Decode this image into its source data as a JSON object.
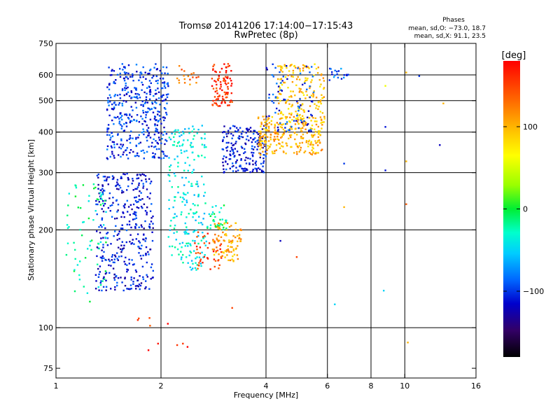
{
  "chart_data": {
    "type": "scatter",
    "title": "Tromsø 20141206 17:14:00−17:15:43",
    "subtitle": "RwPretec (8p)",
    "xlabel": "Frequency [MHz]",
    "ylabel": "Stationary phase Virtual Height [km]",
    "x_scale": "log",
    "y_scale": "log",
    "xlim": [
      1,
      16
    ],
    "ylim": [
      70,
      750
    ],
    "x_ticks": [
      1,
      2,
      4,
      6,
      8,
      10,
      16
    ],
    "x_tick_labels": [
      "1",
      "2",
      "4",
      "6",
      "8",
      "10",
      "16"
    ],
    "y_ticks": [
      75,
      100,
      200,
      300,
      400,
      500,
      600,
      750
    ],
    "y_tick_labels": [
      "75",
      "100",
      "200",
      "300",
      "400",
      "500",
      "600",
      "750"
    ],
    "x_grid": [
      2,
      4,
      6,
      8,
      10
    ],
    "y_grid": [
      100,
      200,
      300,
      400,
      500,
      600
    ],
    "grid": true,
    "legend": {
      "title": "Phases",
      "line1": "mean, sd,O: −73.0, 18.7",
      "line2": "mean, sd,X:  91.1, 23.5"
    },
    "colorbar": {
      "label": "[deg]",
      "range": [
        -180,
        180
      ],
      "ticks": [
        100,
        0,
        -100
      ],
      "tick_labels": [
        "100",
        "0",
        "−100"
      ],
      "colormap": "rainbow"
    },
    "clusters": [
      {
        "fmin": 1.4,
        "fmax": 2.1,
        "hmin": 330,
        "hmax": 650,
        "phase": -100,
        "n": 420
      },
      {
        "fmin": 1.3,
        "fmax": 1.9,
        "hmin": 130,
        "hmax": 300,
        "phase": -110,
        "n": 380
      },
      {
        "fmin": 1.05,
        "fmax": 1.4,
        "hmin": 120,
        "hmax": 280,
        "phase": -20,
        "n": 70
      },
      {
        "fmin": 2.1,
        "fmax": 2.7,
        "hmin": 150,
        "hmax": 420,
        "phase": -40,
        "n": 220
      },
      {
        "fmin": 2.5,
        "fmax": 3.0,
        "hmin": 150,
        "hmax": 200,
        "phase": 150,
        "n": 45
      },
      {
        "fmin": 2.8,
        "fmax": 3.4,
        "hmin": 160,
        "hmax": 210,
        "phase": 105,
        "n": 90
      },
      {
        "fmin": 2.7,
        "fmax": 3.1,
        "hmin": 200,
        "hmax": 240,
        "phase": -20,
        "n": 35
      },
      {
        "fmin": 2.8,
        "fmax": 3.2,
        "hmin": 480,
        "hmax": 650,
        "phase": 160,
        "n": 90
      },
      {
        "fmin": 3.0,
        "fmax": 4.0,
        "hmin": 300,
        "hmax": 420,
        "phase": -110,
        "n": 200
      },
      {
        "fmin": 3.8,
        "fmax": 5.8,
        "hmin": 340,
        "hmax": 450,
        "phase": 100,
        "n": 260
      },
      {
        "fmin": 4.3,
        "fmax": 5.9,
        "hmin": 420,
        "hmax": 650,
        "phase": 95,
        "n": 180
      },
      {
        "fmin": 4.0,
        "fmax": 5.5,
        "hmin": 400,
        "hmax": 650,
        "phase": -100,
        "n": 80
      },
      {
        "fmin": 6.0,
        "fmax": 6.9,
        "hmin": 570,
        "hmax": 630,
        "phase": -90,
        "n": 20
      },
      {
        "fmin": 2.2,
        "fmax": 2.6,
        "hmin": 560,
        "hmax": 650,
        "phase": 130,
        "n": 18
      },
      {
        "fmin": 1.7,
        "fmax": 2.4,
        "hmin": 75,
        "hmax": 110,
        "phase": 160,
        "n": 10
      }
    ],
    "isolated_points": [
      {
        "x": 6.7,
        "y": 320,
        "phase": -100
      },
      {
        "x": 6.7,
        "y": 235,
        "phase": 100
      },
      {
        "x": 8.8,
        "y": 555,
        "phase": 60
      },
      {
        "x": 8.8,
        "y": 415,
        "phase": -110
      },
      {
        "x": 8.8,
        "y": 305,
        "phase": -110
      },
      {
        "x": 8.7,
        "y": 130,
        "phase": -50
      },
      {
        "x": 10.1,
        "y": 610,
        "phase": 100
      },
      {
        "x": 10.1,
        "y": 325,
        "phase": 100
      },
      {
        "x": 10.1,
        "y": 240,
        "phase": 140
      },
      {
        "x": 10.2,
        "y": 90,
        "phase": 100
      },
      {
        "x": 11.0,
        "y": 595,
        "phase": -100
      },
      {
        "x": 12.6,
        "y": 365,
        "phase": -120
      },
      {
        "x": 12.9,
        "y": 490,
        "phase": 100
      },
      {
        "x": 4.4,
        "y": 185,
        "phase": -120
      },
      {
        "x": 4.9,
        "y": 165,
        "phase": 150
      },
      {
        "x": 3.2,
        "y": 115,
        "phase": 150
      },
      {
        "x": 6.3,
        "y": 118,
        "phase": -50
      }
    ]
  }
}
